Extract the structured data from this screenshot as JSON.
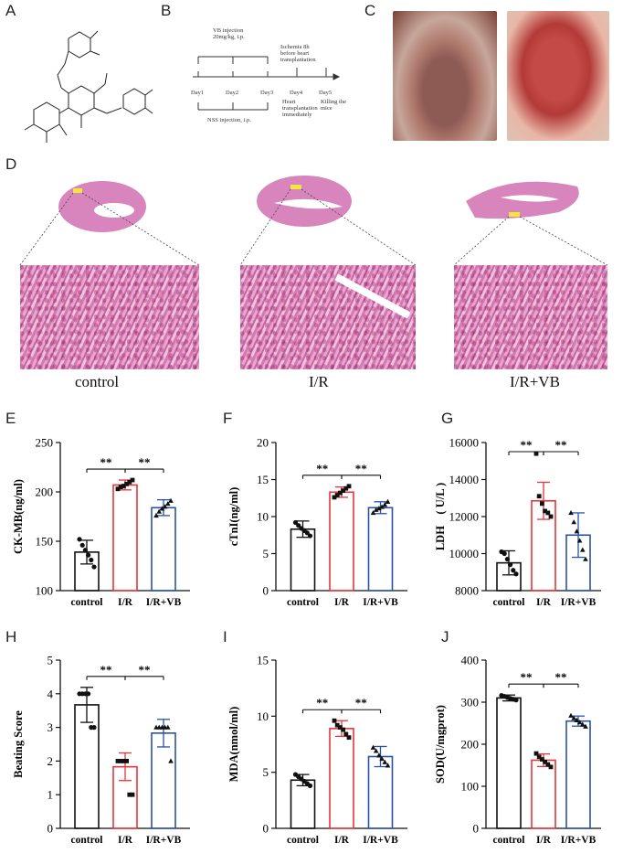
{
  "panels": {
    "A": "A",
    "B": "B",
    "C": "C",
    "D": "D",
    "E": "E",
    "F": "F",
    "G": "G",
    "H": "H",
    "I": "I",
    "J": "J"
  },
  "timeline": {
    "top_note": "VB injection\n20mg/kg, i.p.",
    "ischemia_note": "Ischemia 8h\nbefore heart\ntransplantation",
    "days": [
      "Day1",
      "Day2",
      "Day3",
      "Day4",
      "Day5"
    ],
    "heart_tx_note": "Heart\ntransplantation\nimmediately",
    "kill_note": "Killing the mice",
    "nss_note": "NSS injection, i.p."
  },
  "histology_groups": [
    "control",
    "I/R",
    "I/R+VB"
  ],
  "colors": {
    "control": "#111111",
    "ir": "#e8343a",
    "irvb": "#2a52a4",
    "he_pink": "#d47ab2"
  },
  "chart_data": [
    {
      "type": "bar",
      "panel": "E",
      "categories": [
        "control",
        "I/R",
        "I/R+VB"
      ],
      "values": [
        139,
        207,
        184
      ],
      "errors": [
        12,
        5,
        8
      ],
      "points": [
        [
          152,
          146,
          141,
          136,
          131,
          124
        ],
        [
          203,
          205,
          206,
          208,
          210,
          212
        ],
        [
          176,
          180,
          183,
          185,
          188,
          191
        ]
      ],
      "markers": [
        "circle",
        "square",
        "triangle"
      ],
      "ylabel": "CK-MB(ng/ml)",
      "ylim": [
        100,
        250
      ],
      "yticks": [
        100,
        150,
        200,
        250
      ],
      "significance": [
        "**",
        "**"
      ]
    },
    {
      "type": "bar",
      "panel": "F",
      "categories": [
        "control",
        "I/R",
        "I/R+VB"
      ],
      "values": [
        8.3,
        13.3,
        11.2
      ],
      "errors": [
        1.1,
        0.7,
        0.8
      ],
      "points": [
        [
          9.2,
          8.8,
          8.4,
          8.1,
          7.8,
          7.4
        ],
        [
          12.6,
          12.9,
          13.2,
          13.5,
          13.8,
          14.1
        ],
        [
          10.5,
          10.9,
          11.1,
          11.3,
          11.6,
          12.0
        ]
      ],
      "markers": [
        "circle",
        "square",
        "triangle"
      ],
      "ylabel": "cTnI(ng/ml)",
      "ylim": [
        0,
        20
      ],
      "yticks": [
        0,
        5,
        10,
        15,
        20
      ],
      "significance": [
        "**",
        "**"
      ]
    },
    {
      "type": "bar",
      "panel": "G",
      "categories": [
        "control",
        "I/R",
        "I/R+VB"
      ],
      "values": [
        9500,
        12850,
        11000
      ],
      "errors": [
        650,
        1000,
        1200
      ],
      "points": [
        [
          10100,
          10000,
          9700,
          9400,
          9100,
          8900
        ],
        [
          15400,
          13100,
          12700,
          12300,
          12200,
          12000
        ],
        [
          12200,
          11700,
          11200,
          10700,
          10200,
          9700
        ]
      ],
      "markers": [
        "circle",
        "square",
        "triangle"
      ],
      "ylabel": "LDH　( U/L )",
      "ylim": [
        8000,
        16000
      ],
      "yticks": [
        8000,
        10000,
        12000,
        14000,
        16000
      ],
      "significance": [
        "**",
        "**"
      ]
    },
    {
      "type": "bar",
      "panel": "H",
      "categories": [
        "control",
        "I/R",
        "I/R+VB"
      ],
      "values": [
        3.67,
        1.83,
        2.83
      ],
      "errors": [
        0.52,
        0.41,
        0.41
      ],
      "points": [
        [
          4,
          4,
          4,
          4,
          3,
          3
        ],
        [
          2,
          2,
          2,
          2,
          1,
          1
        ],
        [
          3,
          3,
          3,
          3,
          3,
          2
        ]
      ],
      "markers": [
        "circle",
        "square",
        "triangle"
      ],
      "ylabel": "Beating Score",
      "ylim": [
        0,
        5
      ],
      "yticks": [
        0,
        1,
        2,
        3,
        4,
        5
      ],
      "significance": [
        "**",
        "**"
      ]
    },
    {
      "type": "bar",
      "panel": "I",
      "categories": [
        "control",
        "I/R",
        "I/R+VB"
      ],
      "values": [
        4.3,
        8.9,
        6.4
      ],
      "errors": [
        0.5,
        0.7,
        0.9
      ],
      "points": [
        [
          4.8,
          4.6,
          4.4,
          4.2,
          4.0,
          3.8
        ],
        [
          9.6,
          9.2,
          9.0,
          8.8,
          8.4,
          8.1
        ],
        [
          7.2,
          6.9,
          6.5,
          6.2,
          5.9,
          5.6
        ]
      ],
      "markers": [
        "circle",
        "square",
        "triangle"
      ],
      "ylabel": "MDA(nmol/ml)",
      "ylim": [
        0,
        15
      ],
      "yticks": [
        0,
        5,
        10,
        15
      ],
      "significance": [
        "**",
        "**"
      ]
    },
    {
      "type": "bar",
      "panel": "J",
      "categories": [
        "control",
        "I/R",
        "I/R+VB"
      ],
      "values": [
        310,
        162,
        255
      ],
      "errors": [
        7,
        15,
        12
      ],
      "points": [
        [
          316,
          314,
          311,
          309,
          307,
          305
        ],
        [
          178,
          170,
          164,
          158,
          152,
          146
        ],
        [
          268,
          262,
          257,
          252,
          247,
          242
        ]
      ],
      "markers": [
        "circle",
        "square",
        "triangle"
      ],
      "ylabel": "SOD(U/mgprot)",
      "ylim": [
        0,
        400
      ],
      "yticks": [
        0,
        100,
        200,
        300,
        400
      ],
      "significance": [
        "**",
        "**"
      ]
    }
  ]
}
